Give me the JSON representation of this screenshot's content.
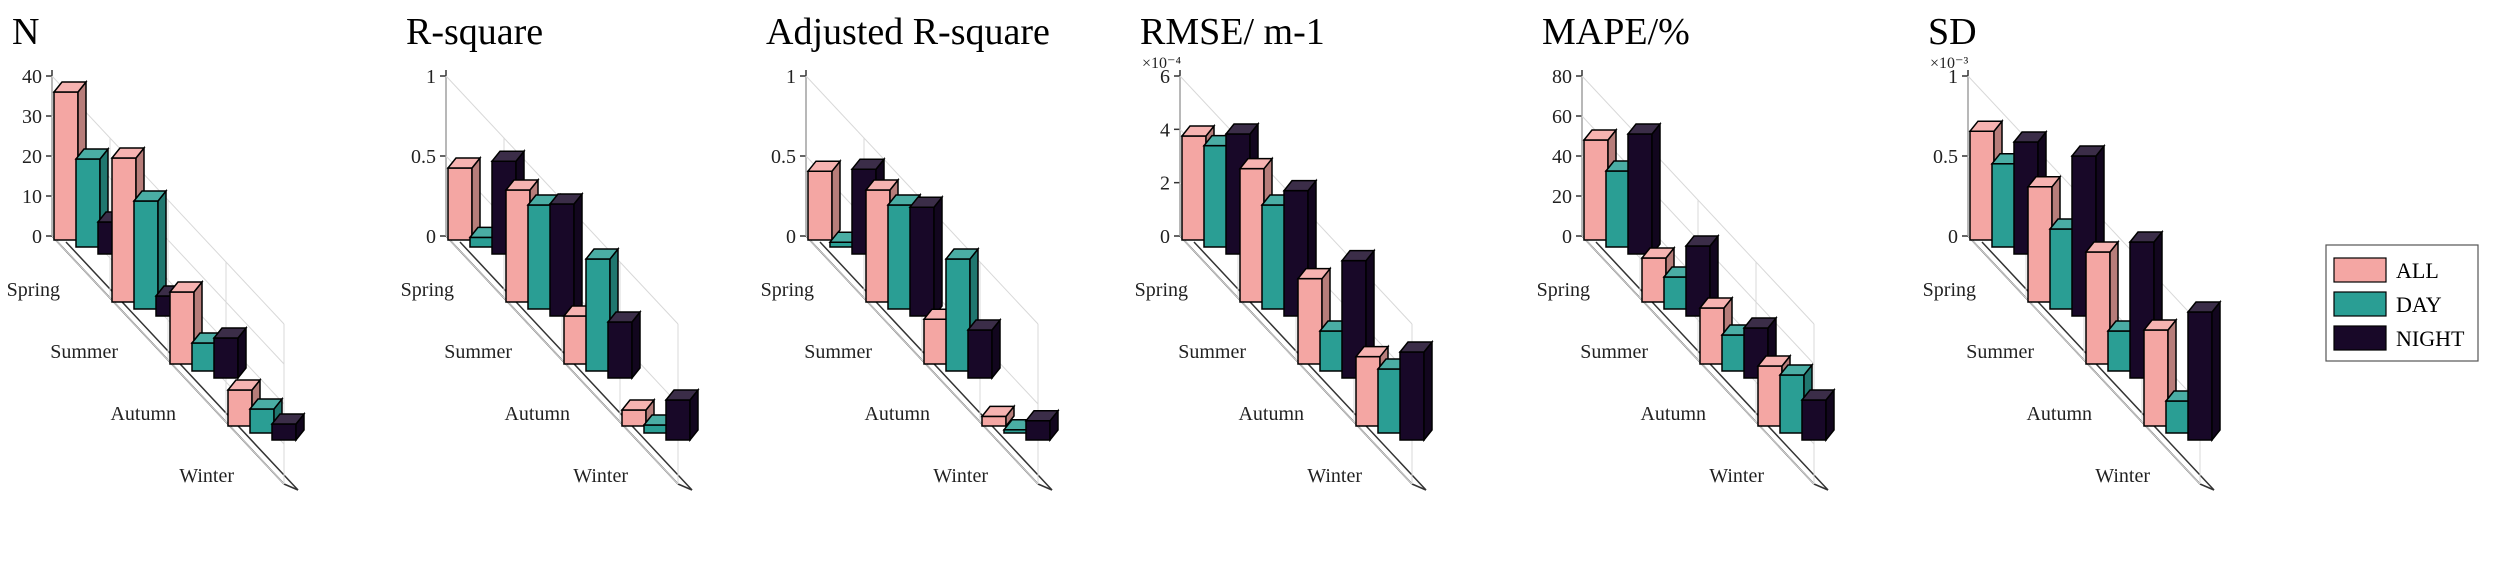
{
  "colors": {
    "all": "#F4A6A3",
    "day": "#2A9E94",
    "night": "#180828"
  },
  "legend": [
    {
      "key": "all",
      "label": "ALL"
    },
    {
      "key": "day",
      "label": "DAY"
    },
    {
      "key": "night",
      "label": "NIGHT"
    }
  ],
  "chart_data": [
    {
      "type": "bar3d",
      "title": "N",
      "multiplier": "",
      "categories": [
        "Spring",
        "Summer",
        "Autumn",
        "Winter"
      ],
      "yticks": [
        "0",
        "10",
        "20",
        "30",
        "40"
      ],
      "ylim": [
        0,
        40
      ],
      "series": [
        {
          "name": "ALL",
          "values": [
            37,
            36,
            18,
            9
          ]
        },
        {
          "name": "DAY",
          "values": [
            22,
            27,
            7,
            6
          ]
        },
        {
          "name": "NIGHT",
          "values": [
            8,
            5,
            10,
            4
          ]
        }
      ]
    },
    {
      "type": "bar3d",
      "title": "R-square",
      "multiplier": "",
      "categories": [
        "Spring",
        "Summer",
        "Autumn",
        "Winter"
      ],
      "yticks": [
        "0",
        "0.5",
        "1"
      ],
      "ylim": [
        0,
        1
      ],
      "series": [
        {
          "name": "ALL",
          "values": [
            0.45,
            0.7,
            0.3,
            0.1
          ]
        },
        {
          "name": "DAY",
          "values": [
            0.06,
            0.65,
            0.7,
            0.05
          ]
        },
        {
          "name": "NIGHT",
          "values": [
            0.58,
            0.7,
            0.35,
            0.25
          ]
        }
      ]
    },
    {
      "type": "bar3d",
      "title": "Adjusted R-square",
      "multiplier": "",
      "categories": [
        "Spring",
        "Summer",
        "Autumn",
        "Winter"
      ],
      "yticks": [
        "0",
        "0.5",
        "1"
      ],
      "ylim": [
        0,
        1
      ],
      "series": [
        {
          "name": "ALL",
          "values": [
            0.43,
            0.7,
            0.28,
            0.06
          ]
        },
        {
          "name": "DAY",
          "values": [
            0.03,
            0.65,
            0.7,
            0.02
          ]
        },
        {
          "name": "NIGHT",
          "values": [
            0.53,
            0.68,
            0.3,
            0.12
          ]
        }
      ]
    },
    {
      "type": "bar3d",
      "title": "RMSE/ m-1",
      "multiplier": "×10⁻⁴",
      "categories": [
        "Spring",
        "Summer",
        "Autumn",
        "Winter"
      ],
      "yticks": [
        "0",
        "2",
        "4",
        "6"
      ],
      "ylim": [
        0,
        6
      ],
      "series": [
        {
          "name": "ALL",
          "values": [
            3.9,
            5.0,
            3.2,
            2.6
          ]
        },
        {
          "name": "DAY",
          "values": [
            3.8,
            3.9,
            1.5,
            2.4
          ]
        },
        {
          "name": "NIGHT",
          "values": [
            4.5,
            4.7,
            4.4,
            3.3
          ]
        }
      ]
    },
    {
      "type": "bar3d",
      "title": "MAPE/%",
      "multiplier": "",
      "categories": [
        "Spring",
        "Summer",
        "Autumn",
        "Winter"
      ],
      "yticks": [
        "0",
        "20",
        "40",
        "60",
        "80"
      ],
      "ylim": [
        0,
        80
      ],
      "series": [
        {
          "name": "ALL",
          "values": [
            50,
            22,
            28,
            30
          ]
        },
        {
          "name": "DAY",
          "values": [
            38,
            16,
            18,
            29
          ]
        },
        {
          "name": "NIGHT",
          "values": [
            60,
            35,
            25,
            20
          ]
        }
      ]
    },
    {
      "type": "bar3d",
      "title": "SD",
      "multiplier": "×10⁻³",
      "categories": [
        "Spring",
        "Summer",
        "Autumn",
        "Winter"
      ],
      "yticks": [
        "0",
        "0.5",
        "1"
      ],
      "ylim": [
        0,
        1
      ],
      "series": [
        {
          "name": "ALL",
          "values": [
            0.68,
            0.72,
            0.7,
            0.6
          ]
        },
        {
          "name": "DAY",
          "values": [
            0.52,
            0.5,
            0.25,
            0.2
          ]
        },
        {
          "name": "NIGHT",
          "values": [
            0.7,
            1.0,
            0.85,
            0.8
          ]
        }
      ]
    }
  ]
}
